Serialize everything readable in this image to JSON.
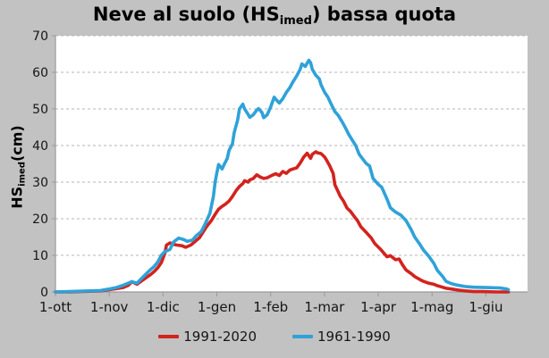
{
  "title": "Neve al suolo (HSimed) bassa quota",
  "title_parts": {
    "prefix": "Neve al suolo (HS",
    "sub": "imed",
    "suffix": ") bassa quota"
  },
  "colors": {
    "background": "#c2c2c2",
    "plot_background": "#ffffff",
    "gridline": "#b4b4b4",
    "axis": "#9a9a9a",
    "text": "#161616",
    "series_red": "#d2231f",
    "series_blue": "#2fa2d8"
  },
  "chart_data": {
    "type": "line",
    "title": "Neve al suolo (HSimed) bassa quota",
    "ylabel": "HSimed(cm)",
    "ylabel_parts": {
      "prefix": "HS",
      "sub": "imed",
      "suffix": "(cm)"
    },
    "ylim": [
      0,
      70
    ],
    "y_ticks": [
      0,
      10,
      20,
      30,
      40,
      50,
      60,
      70
    ],
    "grid": "horizontal-dashed",
    "legend_position": "bottom",
    "x_unit": "days since 1 October",
    "x_max_day": 272,
    "x_ticks": [
      {
        "label": "1-ott",
        "day": 0
      },
      {
        "label": "1-nov",
        "day": 31
      },
      {
        "label": "1-dic",
        "day": 62
      },
      {
        "label": "1-gen",
        "day": 93
      },
      {
        "label": "1-feb",
        "day": 124
      },
      {
        "label": "1-mar",
        "day": 155
      },
      {
        "label": "1-apr",
        "day": 186
      },
      {
        "label": "1-mag",
        "day": 217
      },
      {
        "label": "1-giu",
        "day": 248
      }
    ],
    "series": [
      {
        "name": "1991-2020",
        "color": "#d2231f",
        "points": [
          [
            0,
            0
          ],
          [
            8,
            0
          ],
          [
            14,
            0.1
          ],
          [
            20,
            0.2
          ],
          [
            26,
            0.3
          ],
          [
            31,
            0.6
          ],
          [
            35,
            0.9
          ],
          [
            39,
            1.2
          ],
          [
            42,
            1.8
          ],
          [
            44,
            2.8
          ],
          [
            47,
            2.1
          ],
          [
            49,
            2.8
          ],
          [
            52,
            3.8
          ],
          [
            55,
            4.8
          ],
          [
            57,
            5.6
          ],
          [
            59,
            6.6
          ],
          [
            61,
            8
          ],
          [
            63,
            10.5
          ],
          [
            64,
            12.8
          ],
          [
            66,
            13.4
          ],
          [
            68,
            13
          ],
          [
            70,
            12.8
          ],
          [
            73,
            12.6
          ],
          [
            75,
            12.2
          ],
          [
            78,
            12.8
          ],
          [
            80,
            13.6
          ],
          [
            83,
            14.8
          ],
          [
            85,
            16.3
          ],
          [
            87,
            17.8
          ],
          [
            90,
            19.6
          ],
          [
            92,
            21.2
          ],
          [
            94,
            22.6
          ],
          [
            96,
            23.4
          ],
          [
            98,
            24
          ],
          [
            100,
            24.8
          ],
          [
            102,
            26.1
          ],
          [
            104,
            27.6
          ],
          [
            106,
            28.8
          ],
          [
            108,
            29.6
          ],
          [
            109,
            30.4
          ],
          [
            111,
            30
          ],
          [
            112,
            30.6
          ],
          [
            114,
            31
          ],
          [
            116,
            32
          ],
          [
            118,
            31.4
          ],
          [
            120,
            31
          ],
          [
            122,
            31.2
          ],
          [
            125,
            31.9
          ],
          [
            127,
            32.3
          ],
          [
            129,
            31.8
          ],
          [
            131,
            32.9
          ],
          [
            133,
            32.4
          ],
          [
            135,
            33.3
          ],
          [
            137,
            33.6
          ],
          [
            139,
            33.9
          ],
          [
            141,
            35.2
          ],
          [
            143,
            36.8
          ],
          [
            145,
            37.9
          ],
          [
            147,
            36.5
          ],
          [
            148,
            37.6
          ],
          [
            150,
            38.3
          ],
          [
            151,
            38
          ],
          [
            153,
            37.8
          ],
          [
            155,
            36.9
          ],
          [
            156,
            36.2
          ],
          [
            158,
            34.5
          ],
          [
            160,
            32.4
          ],
          [
            161,
            29.3
          ],
          [
            163,
            27.3
          ],
          [
            164,
            26.2
          ],
          [
            166,
            24.8
          ],
          [
            168,
            22.9
          ],
          [
            170,
            22
          ],
          [
            172,
            20.7
          ],
          [
            174,
            19.5
          ],
          [
            176,
            17.8
          ],
          [
            179,
            16.3
          ],
          [
            182,
            14.7
          ],
          [
            184,
            13.2
          ],
          [
            187,
            11.8
          ],
          [
            189,
            10.7
          ],
          [
            191,
            9.6
          ],
          [
            193,
            9.9
          ],
          [
            196,
            8.8
          ],
          [
            198,
            9
          ],
          [
            200,
            7.4
          ],
          [
            202,
            6
          ],
          [
            205,
            5
          ],
          [
            207,
            4.2
          ],
          [
            210,
            3.4
          ],
          [
            212,
            2.9
          ],
          [
            215,
            2.4
          ],
          [
            218,
            2.1
          ],
          [
            220,
            1.7
          ],
          [
            223,
            1.3
          ],
          [
            225,
            1
          ],
          [
            228,
            0.8
          ],
          [
            232,
            0.5
          ],
          [
            236,
            0.3
          ],
          [
            241,
            0.1
          ],
          [
            246,
            0.1
          ],
          [
            254,
            0
          ],
          [
            261,
            0
          ]
        ]
      },
      {
        "name": "1961-1990",
        "color": "#2fa2d8",
        "points": [
          [
            0,
            0
          ],
          [
            8,
            0.1
          ],
          [
            14,
            0.2
          ],
          [
            20,
            0.3
          ],
          [
            26,
            0.4
          ],
          [
            31,
            0.8
          ],
          [
            35,
            1.2
          ],
          [
            39,
            1.8
          ],
          [
            42,
            2.4
          ],
          [
            44,
            2.8
          ],
          [
            47,
            2.4
          ],
          [
            49,
            3.4
          ],
          [
            52,
            4.8
          ],
          [
            55,
            6.2
          ],
          [
            57,
            7
          ],
          [
            59,
            8.2
          ],
          [
            61,
            10
          ],
          [
            63,
            11
          ],
          [
            66,
            11.6
          ],
          [
            68,
            13.6
          ],
          [
            71,
            14.7
          ],
          [
            74,
            14.3
          ],
          [
            76,
            13.8
          ],
          [
            79,
            14.2
          ],
          [
            81,
            15.3
          ],
          [
            84,
            16.5
          ],
          [
            86,
            18.3
          ],
          [
            89,
            21.5
          ],
          [
            91,
            26
          ],
          [
            92,
            30
          ],
          [
            93,
            32.5
          ],
          [
            94,
            34.8
          ],
          [
            96,
            33.6
          ],
          [
            97,
            34.6
          ],
          [
            99,
            36.5
          ],
          [
            100,
            38.6
          ],
          [
            102,
            40.5
          ],
          [
            103,
            43.5
          ],
          [
            105,
            47
          ],
          [
            106,
            50
          ],
          [
            108,
            51.3
          ],
          [
            109,
            50
          ],
          [
            111,
            48.5
          ],
          [
            112,
            47.7
          ],
          [
            114,
            48.4
          ],
          [
            116,
            49.7
          ],
          [
            117,
            50.1
          ],
          [
            119,
            49
          ],
          [
            120,
            47.6
          ],
          [
            122,
            48.4
          ],
          [
            124,
            50.5
          ],
          [
            126,
            53.2
          ],
          [
            127,
            52.6
          ],
          [
            129,
            51.6
          ],
          [
            131,
            52.8
          ],
          [
            133,
            54.5
          ],
          [
            135,
            55.8
          ],
          [
            137,
            57.5
          ],
          [
            139,
            59
          ],
          [
            141,
            60.8
          ],
          [
            142,
            62.3
          ],
          [
            144,
            61.6
          ],
          [
            146,
            63.3
          ],
          [
            147,
            62.6
          ],
          [
            148,
            60.8
          ],
          [
            150,
            59.2
          ],
          [
            152,
            58.2
          ],
          [
            153,
            56.6
          ],
          [
            155,
            54.6
          ],
          [
            157,
            53.2
          ],
          [
            159,
            51.2
          ],
          [
            161,
            49.3
          ],
          [
            163,
            48.2
          ],
          [
            165,
            46.6
          ],
          [
            167,
            44.9
          ],
          [
            169,
            43
          ],
          [
            171,
            41.5
          ],
          [
            173,
            40
          ],
          [
            175,
            37.6
          ],
          [
            179,
            35.1
          ],
          [
            181,
            34.4
          ],
          [
            183,
            31
          ],
          [
            186,
            29.4
          ],
          [
            188,
            28.6
          ],
          [
            191,
            25.4
          ],
          [
            193,
            23
          ],
          [
            196,
            21.8
          ],
          [
            199,
            21
          ],
          [
            202,
            19.5
          ],
          [
            205,
            17
          ],
          [
            207,
            15
          ],
          [
            210,
            13
          ],
          [
            212,
            11.5
          ],
          [
            215,
            9.8
          ],
          [
            218,
            7.8
          ],
          [
            220,
            5.9
          ],
          [
            223,
            4.3
          ],
          [
            225,
            2.9
          ],
          [
            228,
            2.3
          ],
          [
            231,
            1.9
          ],
          [
            236,
            1.5
          ],
          [
            241,
            1.3
          ],
          [
            248,
            1.2
          ],
          [
            256,
            1.1
          ],
          [
            260,
            0.8
          ],
          [
            261,
            0.6
          ]
        ]
      }
    ]
  }
}
